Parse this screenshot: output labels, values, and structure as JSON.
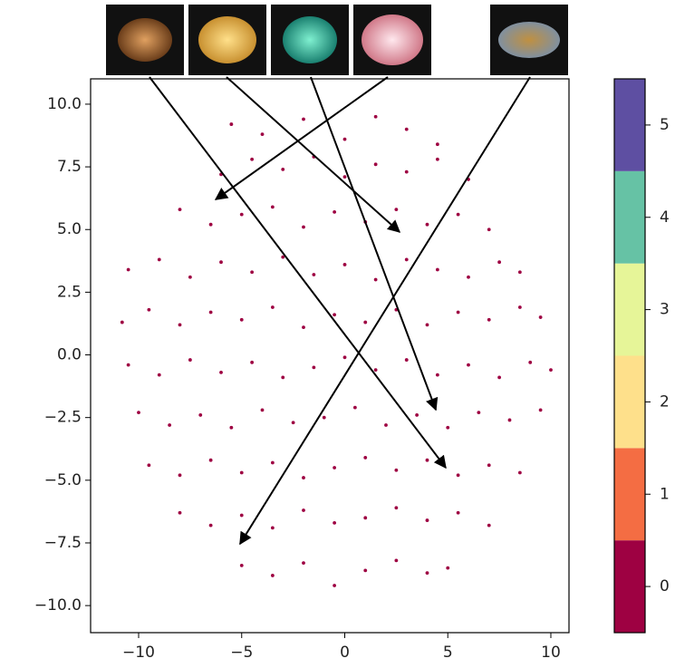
{
  "chart_data": {
    "type": "scatter",
    "color": "#9e0142",
    "x": [
      -5.5,
      -4,
      -2,
      0,
      1.5,
      3,
      4.5,
      -6,
      -4.5,
      -3,
      -1.5,
      0,
      1.5,
      3,
      4.5,
      6,
      -8,
      -6.5,
      -5,
      -3.5,
      -2,
      -0.5,
      1,
      2.5,
      4,
      5.5,
      7,
      -10.5,
      -9,
      -7.5,
      -6,
      -4.5,
      -3,
      -1.5,
      0,
      1.5,
      3,
      4.5,
      6,
      7.5,
      8.5,
      -10.8,
      -9.5,
      -8,
      -6.5,
      -5,
      -3.5,
      -2,
      -0.5,
      1,
      2.5,
      4,
      5.5,
      7,
      8.5,
      9.5,
      -10.5,
      -9,
      -7.5,
      -6,
      -4.5,
      -3,
      -1.5,
      0,
      1.5,
      3,
      4.5,
      6,
      7.5,
      9,
      10,
      -10,
      -8.5,
      -7,
      -5.5,
      -4,
      -2.5,
      -1,
      0.5,
      2,
      3.5,
      5,
      6.5,
      8,
      9.5,
      -9.5,
      -8,
      -6.5,
      -5,
      -3.5,
      -2,
      -0.5,
      1,
      2.5,
      4,
      5.5,
      7,
      8.5,
      -8,
      -6.5,
      -5,
      -3.5,
      -2,
      -0.5,
      1,
      2.5,
      4,
      5.5,
      7,
      -5,
      -3.5,
      -2,
      -0.5,
      1,
      2.5,
      4,
      5
    ],
    "values": [
      9.2,
      8.8,
      9.4,
      8.6,
      9.5,
      9.0,
      8.4,
      7.2,
      7.8,
      7.4,
      7.9,
      7.1,
      7.6,
      7.3,
      7.8,
      7.0,
      5.8,
      5.2,
      5.6,
      5.9,
      5.1,
      5.7,
      5.3,
      5.8,
      5.2,
      5.6,
      5.0,
      3.4,
      3.8,
      3.1,
      3.7,
      3.3,
      3.9,
      3.2,
      3.6,
      3.0,
      3.8,
      3.4,
      3.1,
      3.7,
      3.3,
      1.3,
      1.8,
      1.2,
      1.7,
      1.4,
      1.9,
      1.1,
      1.6,
      1.3,
      1.8,
      1.2,
      1.7,
      1.4,
      1.9,
      1.5,
      -0.4,
      -0.8,
      -0.2,
      -0.7,
      -0.3,
      -0.9,
      -0.5,
      -0.1,
      -0.6,
      -0.2,
      -0.8,
      -0.4,
      -0.9,
      -0.3,
      -0.6,
      -2.3,
      -2.8,
      -2.4,
      -2.9,
      -2.2,
      -2.7,
      -2.5,
      -2.1,
      -2.8,
      -2.4,
      -2.9,
      -2.3,
      -2.6,
      -2.2,
      -4.4,
      -4.8,
      -4.2,
      -4.7,
      -4.3,
      -4.9,
      -4.5,
      -4.1,
      -4.6,
      -4.2,
      -4.8,
      -4.4,
      -4.7,
      -6.3,
      -6.8,
      -6.4,
      -6.9,
      -6.2,
      -6.7,
      -6.5,
      -6.1,
      -6.6,
      -6.3,
      -6.8,
      -8.4,
      -8.8,
      -8.3,
      -9.2,
      -8.6,
      -8.2,
      -8.7,
      -8.5
    ],
    "xlim": [
      -12.33,
      10.88
    ],
    "ylim": [
      -11.08,
      11.01
    ],
    "xticks": [
      {
        "value": -10,
        "label": "−10"
      },
      {
        "value": -5,
        "label": "−5"
      },
      0,
      5,
      10
    ],
    "yticks": [
      {
        "value": 10,
        "label": "10.0"
      },
      7.5,
      {
        "value": 5,
        "label": "5.0"
      },
      2.5,
      {
        "value": 0,
        "label": "0.0"
      },
      {
        "value": -2.5,
        "label": "−2.5"
      },
      {
        "value": -5,
        "label": "−5.0"
      },
      {
        "value": -7.5,
        "label": "−7.5"
      },
      {
        "value": -10,
        "label": "−10.0"
      }
    ],
    "annotations": [
      {
        "x": 4.9,
        "y": -4.5
      },
      {
        "x": 2.66,
        "y": 4.9
      },
      {
        "x": 4.42,
        "y": -2.19
      },
      {
        "x": -6.26,
        "y": 6.2
      },
      {
        "x": -5.08,
        "y": -7.54
      }
    ],
    "colorbar": {
      "colors": [
        "#9e0142",
        "#f46d43",
        "#fee08b",
        "#e6f598",
        "#66c2a5",
        "#5e4fa2"
      ],
      "lim": [
        -0.5,
        5.5
      ],
      "ticks": [
        0,
        1,
        2,
        3,
        4,
        5
      ]
    }
  }
}
